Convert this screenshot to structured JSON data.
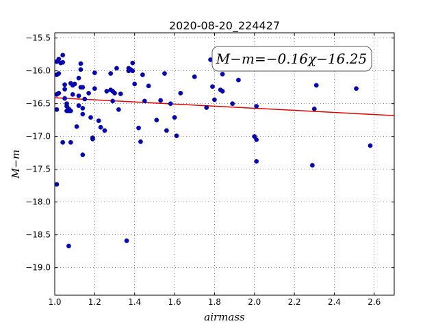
{
  "chart_data": {
    "type": "scatter",
    "title": "2020-08-20_224427",
    "xlabel": "airmass",
    "ylabel": "M−m",
    "xlim": [
      1.0,
      2.7
    ],
    "ylim": [
      -19.42,
      -15.42
    ],
    "x_ticks": [
      1.0,
      1.2,
      1.4,
      1.6,
      1.8,
      2.0,
      2.2,
      2.4,
      2.6
    ],
    "x_tick_labels": [
      "1.0",
      "1.2",
      "1.4",
      "1.6",
      "1.8",
      "2.0",
      "2.2",
      "2.4",
      "2.6"
    ],
    "y_ticks": [
      -15.5,
      -16.0,
      -16.5,
      -17.0,
      -17.5,
      -18.0,
      -18.5,
      -19.0
    ],
    "y_tick_labels": [
      "−15.5",
      "−16.0",
      "−16.5",
      "−17.0",
      "−17.5",
      "−18.0",
      "−18.5",
      "−19.0"
    ],
    "grid": true,
    "annotation": "M−m=−0.16χ−16.25",
    "marker_color": "#0000cc",
    "fit_color": "#dd0000",
    "fit": {
      "slope": -0.16,
      "intercept": -16.25
    },
    "points": [
      [
        1.01,
        -16.36
      ],
      [
        1.01,
        -16.06
      ],
      [
        1.01,
        -15.86
      ],
      [
        1.01,
        -16.59
      ],
      [
        1.01,
        -17.73
      ],
      [
        1.02,
        -15.82
      ],
      [
        1.02,
        -16.04
      ],
      [
        1.02,
        -16.34
      ],
      [
        1.03,
        -15.88
      ],
      [
        1.04,
        -17.09
      ],
      [
        1.04,
        -15.87
      ],
      [
        1.04,
        -15.76
      ],
      [
        1.05,
        -16.21
      ],
      [
        1.05,
        -16.28
      ],
      [
        1.05,
        -16.42
      ],
      [
        1.06,
        -16.54
      ],
      [
        1.06,
        -16.5
      ],
      [
        1.06,
        -16.61
      ],
      [
        1.07,
        -16.58
      ],
      [
        1.07,
        -16.61
      ],
      [
        1.07,
        -18.67
      ],
      [
        1.08,
        -16.61
      ],
      [
        1.08,
        -16.19
      ],
      [
        1.08,
        -17.09
      ],
      [
        1.09,
        -16.22
      ],
      [
        1.09,
        -16.36
      ],
      [
        1.1,
        -16.2
      ],
      [
        1.11,
        -16.85
      ],
      [
        1.12,
        -16.11
      ],
      [
        1.12,
        -16.38
      ],
      [
        1.12,
        -16.53
      ],
      [
        1.13,
        -15.98
      ],
      [
        1.13,
        -15.89
      ],
      [
        1.13,
        -16.25
      ],
      [
        1.14,
        -16.25
      ],
      [
        1.14,
        -16.57
      ],
      [
        1.14,
        -16.66
      ],
      [
        1.14,
        -17.28
      ],
      [
        1.15,
        -16.43
      ],
      [
        1.17,
        -16.34
      ],
      [
        1.18,
        -16.71
      ],
      [
        1.19,
        -17.02
      ],
      [
        1.19,
        -17.04
      ],
      [
        1.2,
        -16.27
      ],
      [
        1.2,
        -16.03
      ],
      [
        1.22,
        -16.76
      ],
      [
        1.23,
        -16.86
      ],
      [
        1.25,
        -16.91
      ],
      [
        1.26,
        -16.31
      ],
      [
        1.28,
        -16.04
      ],
      [
        1.28,
        -16.29
      ],
      [
        1.29,
        -16.31
      ],
      [
        1.29,
        -16.46
      ],
      [
        1.3,
        -16.34
      ],
      [
        1.31,
        -15.96
      ],
      [
        1.32,
        -16.59
      ],
      [
        1.33,
        -16.35
      ],
      [
        1.36,
        -18.59
      ],
      [
        1.37,
        -15.96
      ],
      [
        1.37,
        -16.0
      ],
      [
        1.38,
        -15.98
      ],
      [
        1.39,
        -15.88
      ],
      [
        1.39,
        -16.0
      ],
      [
        1.4,
        -16.2
      ],
      [
        1.42,
        -16.87
      ],
      [
        1.43,
        -17.08
      ],
      [
        1.44,
        -16.06
      ],
      [
        1.45,
        -16.46
      ],
      [
        1.47,
        -16.23
      ],
      [
        1.51,
        -16.75
      ],
      [
        1.53,
        -16.45
      ],
      [
        1.55,
        -16.04
      ],
      [
        1.56,
        -16.91
      ],
      [
        1.58,
        -16.5
      ],
      [
        1.6,
        -16.71
      ],
      [
        1.61,
        -16.99
      ],
      [
        1.63,
        -16.34
      ],
      [
        1.7,
        -16.09
      ],
      [
        1.76,
        -16.56
      ],
      [
        1.78,
        -15.83
      ],
      [
        1.79,
        -16.24
      ],
      [
        1.8,
        -16.44
      ],
      [
        1.83,
        -16.29
      ],
      [
        1.84,
        -16.31
      ],
      [
        1.84,
        -16.05
      ],
      [
        1.89,
        -16.5
      ],
      [
        1.92,
        -16.14
      ],
      [
        2.0,
        -17.0
      ],
      [
        2.01,
        -17.05
      ],
      [
        2.01,
        -17.38
      ],
      [
        2.01,
        -16.54
      ],
      [
        2.29,
        -17.44
      ],
      [
        2.3,
        -16.58
      ],
      [
        2.31,
        -16.22
      ],
      [
        2.51,
        -16.27
      ],
      [
        2.58,
        -17.14
      ]
    ]
  }
}
